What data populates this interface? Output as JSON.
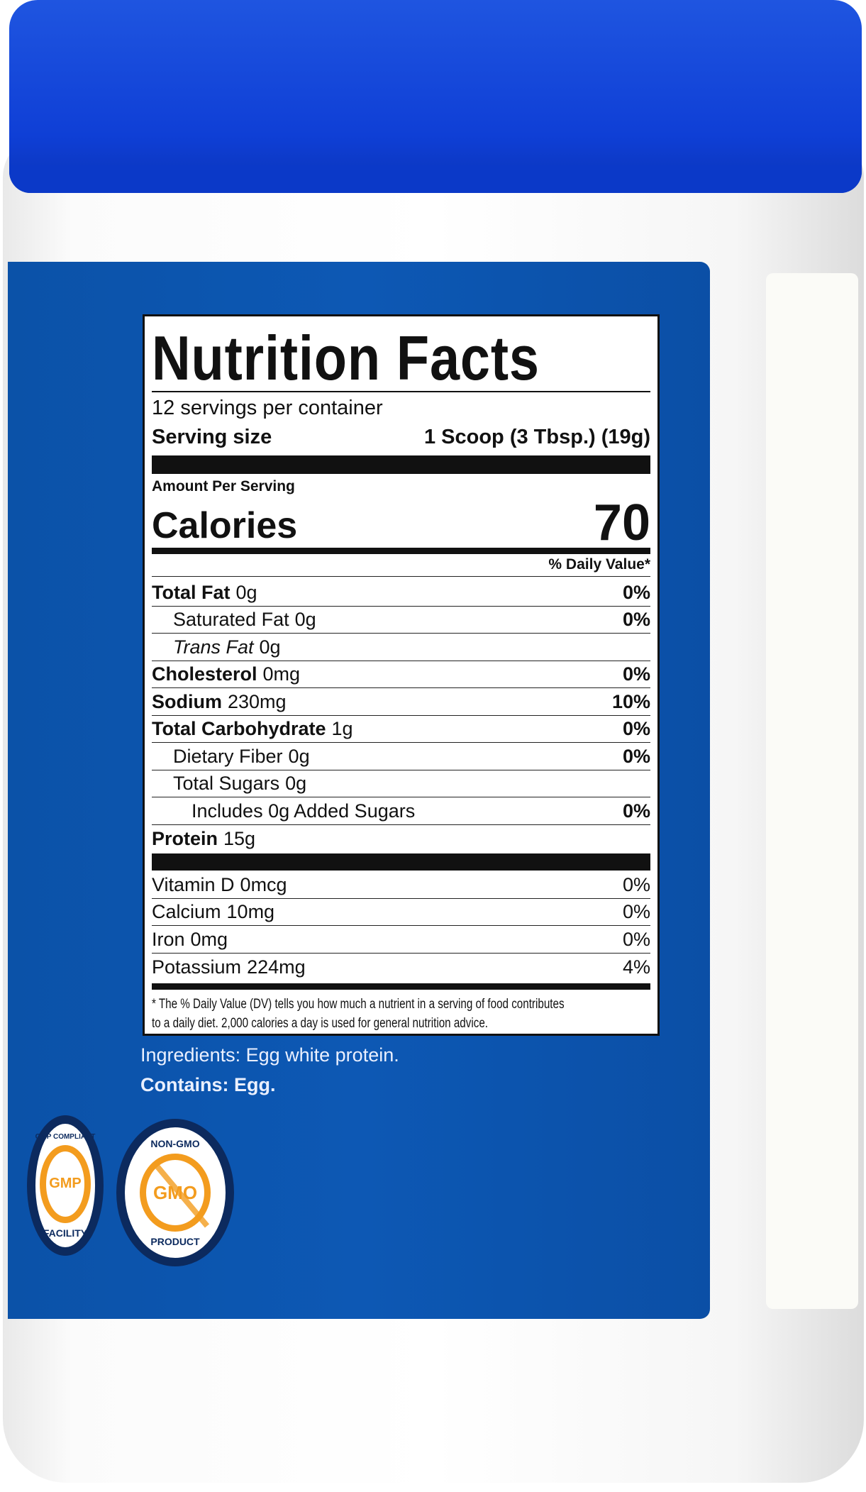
{
  "label": {
    "title": "Nutrition Facts",
    "servings": "12 servings per container",
    "serving_size_label": "Serving size",
    "serving_size_value": "1 Scoop (3 Tbsp.) (19g)",
    "amount_per_serving": "Amount Per Serving",
    "calories_label": "Calories",
    "calories_value": "70",
    "dv_header": "% Daily Value*",
    "nutrients": [
      {
        "name": "Total Fat",
        "amount": "0g",
        "dv": "0%"
      },
      {
        "name": "Saturated Fat",
        "amount": "0g",
        "dv": "0%"
      },
      {
        "name": "Trans Fat",
        "amount": "0g",
        "dv": ""
      },
      {
        "name": "Cholesterol",
        "amount": "0mg",
        "dv": "0%"
      },
      {
        "name": "Sodium",
        "amount": "230mg",
        "dv": "10%"
      },
      {
        "name": "Total Carbohydrate",
        "amount": "1g",
        "dv": "0%"
      },
      {
        "name": "Dietary Fiber",
        "amount": "0g",
        "dv": "0%"
      },
      {
        "name": "Total Sugars",
        "amount": "0g",
        "dv": ""
      },
      {
        "name": "Includes 0g Added Sugars",
        "amount": "",
        "dv": "0%"
      },
      {
        "name": "Protein",
        "amount": "15g",
        "dv": ""
      }
    ],
    "vitamins": [
      {
        "name": "Vitamin D",
        "amount": "0mcg",
        "dv": "0%"
      },
      {
        "name": "Calcium",
        "amount": "10mg",
        "dv": "0%"
      },
      {
        "name": "Iron",
        "amount": "0mg",
        "dv": "0%"
      },
      {
        "name": "Potassium",
        "amount": "224mg",
        "dv": "4%"
      }
    ],
    "footnote_1": "* The % Daily Value (DV) tells you how much a nutrient in a serving of food contributes",
    "footnote_2": "to a daily diet. 2,000 calories a day is used for general nutrition advice."
  },
  "ingredients": "Ingredients: Egg white protein.",
  "contains": "Contains: Egg.",
  "badges": {
    "gmp": {
      "top": "GMP COMPLIANT",
      "center": "GMP",
      "bottom": "FACILITY"
    },
    "nongmo": {
      "top": "NON-GMO",
      "center": "GMO",
      "bottom": "PRODUCT"
    }
  },
  "colors": {
    "cap": "#0f3fd6",
    "panel": "#0d58b4",
    "badge_orange": "#f39c1e",
    "badge_navy": "#0c2a5e"
  }
}
